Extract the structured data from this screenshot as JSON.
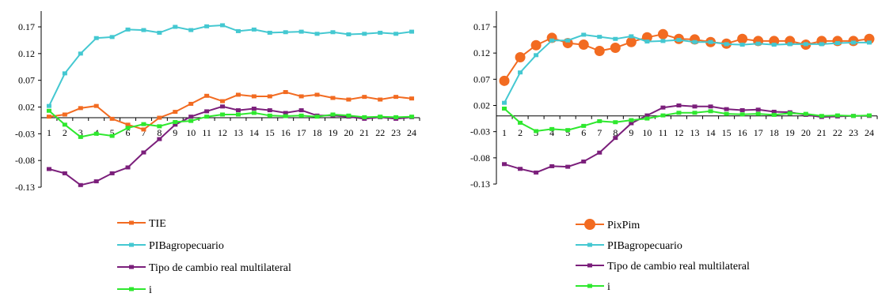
{
  "chart_data": [
    {
      "type": "line",
      "categories": [
        "1",
        "2",
        "3",
        "4",
        "5",
        "6",
        "7",
        "8",
        "9",
        "10",
        "11",
        "12",
        "13",
        "14",
        "15",
        "16",
        "17",
        "18",
        "19",
        "20",
        "21",
        "22",
        "23",
        "24"
      ],
      "ylim": [
        -0.13,
        0.17
      ],
      "yticks": [
        "0.17",
        "0.12",
        "0.07",
        "0.02",
        "-0.03",
        "-0.08",
        "-0.13"
      ],
      "grid": false,
      "legend_position": "bottom",
      "series": [
        {
          "name": "TIE",
          "color": "#f26b21",
          "marker": "square",
          "values": [
            0.002,
            0.006,
            0.018,
            0.022,
            -0.002,
            -0.013,
            -0.022,
            0.0,
            0.011,
            0.026,
            0.041,
            0.031,
            0.043,
            0.04,
            0.04,
            0.048,
            0.04,
            0.043,
            0.037,
            0.034,
            0.039,
            0.034,
            0.039,
            0.036
          ]
        },
        {
          "name": "PIBagropecuario",
          "color": "#44c8d1",
          "marker": "square",
          "values": [
            0.022,
            0.083,
            0.12,
            0.149,
            0.151,
            0.165,
            0.164,
            0.159,
            0.17,
            0.164,
            0.171,
            0.173,
            0.162,
            0.165,
            0.159,
            0.16,
            0.161,
            0.157,
            0.16,
            0.156,
            0.157,
            0.159,
            0.157,
            0.161
          ]
        },
        {
          "name": "Tipo de cambio real multilateral",
          "color": "#7b1f7b",
          "marker": "square",
          "values": [
            -0.096,
            -0.104,
            -0.126,
            -0.119,
            -0.104,
            -0.093,
            -0.065,
            -0.04,
            -0.013,
            0.002,
            0.012,
            0.021,
            0.014,
            0.017,
            0.014,
            0.009,
            0.014,
            0.004,
            0.004,
            0.002,
            -0.002,
            0.001,
            -0.002,
            0.001
          ]
        },
        {
          "name": "i",
          "color": "#2ee82e",
          "marker": "square",
          "values": [
            0.013,
            -0.013,
            -0.036,
            -0.03,
            -0.034,
            -0.019,
            -0.012,
            -0.016,
            -0.008,
            -0.006,
            0.002,
            0.006,
            0.006,
            0.009,
            0.004,
            0.003,
            0.004,
            0.002,
            0.006,
            0.004,
            0.001,
            0.002,
            0.001,
            0.002
          ]
        }
      ]
    },
    {
      "type": "line",
      "categories": [
        "1",
        "2",
        "3",
        "4",
        "5",
        "6",
        "7",
        "8",
        "9",
        "10",
        "11",
        "12",
        "13",
        "14",
        "15",
        "16",
        "17",
        "18",
        "19",
        "20",
        "21",
        "22",
        "23",
        "24"
      ],
      "ylim": [
        -0.13,
        0.17
      ],
      "yticks": [
        "0.17",
        "0.12",
        "0.07",
        "0.02",
        "-0.03",
        "-0.08",
        "-0.13"
      ],
      "grid": false,
      "legend_position": "bottom",
      "series": [
        {
          "name": "PixPim",
          "color": "#f26b21",
          "marker": "circle",
          "values": [
            0.067,
            0.112,
            0.135,
            0.149,
            0.139,
            0.136,
            0.124,
            0.13,
            0.141,
            0.15,
            0.156,
            0.147,
            0.146,
            0.141,
            0.138,
            0.147,
            0.143,
            0.143,
            0.143,
            0.136,
            0.143,
            0.143,
            0.143,
            0.147
          ]
        },
        {
          "name": "PIBagropecuario",
          "color": "#44c8d1",
          "marker": "square",
          "values": [
            0.025,
            0.083,
            0.116,
            0.144,
            0.144,
            0.155,
            0.151,
            0.147,
            0.152,
            0.142,
            0.143,
            0.145,
            0.141,
            0.141,
            0.137,
            0.136,
            0.138,
            0.136,
            0.137,
            0.137,
            0.137,
            0.139,
            0.14,
            0.14
          ]
        },
        {
          "name": "Tipo de cambio real multilateral",
          "color": "#7b1f7b",
          "marker": "square",
          "values": [
            -0.092,
            -0.101,
            -0.108,
            -0.096,
            -0.097,
            -0.087,
            -0.07,
            -0.042,
            -0.014,
            0.001,
            0.016,
            0.02,
            0.018,
            0.018,
            0.013,
            0.011,
            0.012,
            0.008,
            0.007,
            0.002,
            -0.002,
            -0.001,
            0.0,
            0.0
          ]
        },
        {
          "name": "i",
          "color": "#2ee82e",
          "marker": "square",
          "values": [
            0.014,
            -0.013,
            -0.029,
            -0.025,
            -0.027,
            -0.019,
            -0.01,
            -0.012,
            -0.008,
            -0.005,
            0.001,
            0.006,
            0.006,
            0.009,
            0.004,
            0.003,
            0.004,
            0.002,
            0.005,
            0.004,
            0.0,
            0.001,
            0.0,
            0.001
          ]
        }
      ]
    }
  ]
}
